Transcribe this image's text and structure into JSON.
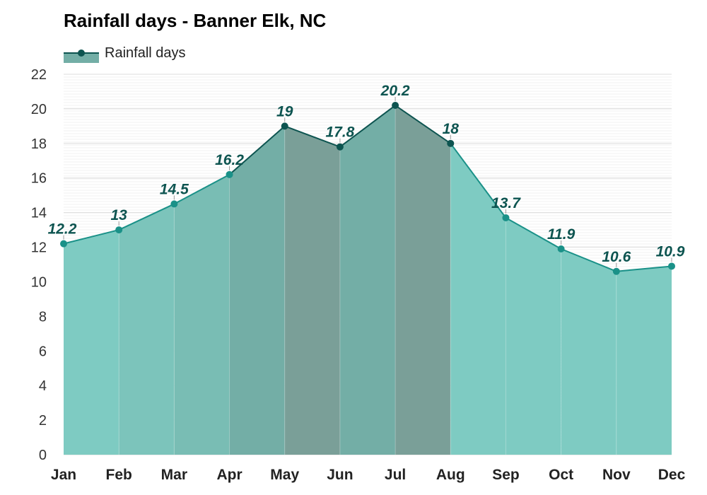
{
  "chart_data": {
    "type": "area",
    "title": "Rainfall days - Banner Elk, NC",
    "categories": [
      "Jan",
      "Feb",
      "Mar",
      "Apr",
      "May",
      "Jun",
      "Jul",
      "Aug",
      "Sep",
      "Oct",
      "Nov",
      "Dec"
    ],
    "series": [
      {
        "name": "Rainfall days",
        "values": [
          12.2,
          13,
          14.5,
          16.2,
          19,
          17.8,
          20.2,
          18,
          13.7,
          11.9,
          10.6,
          10.9
        ],
        "data_labels": [
          "12.2",
          "13",
          "14.5",
          "16.2",
          "19",
          "17.8",
          "20.2",
          "18",
          "13.7",
          "11.9",
          "10.6",
          "10.9"
        ]
      }
    ],
    "ylim": [
      0,
      22
    ],
    "yticks": [
      0,
      2,
      4,
      6,
      8,
      10,
      12,
      14,
      16,
      18,
      20,
      22
    ],
    "ytick_labels": [
      "0",
      "2",
      "4",
      "6",
      "8",
      "10",
      "12",
      "14",
      "16",
      "18",
      "20",
      "22"
    ],
    "grid": true,
    "legend_position": "top-left",
    "colors": {
      "fill": "#7ecbc2",
      "fill_mid": "#73aea6",
      "fill_dark": "#7a9f98",
      "line": "#1a9188",
      "line_dark": "#0d5450",
      "marker": "#1a9188",
      "marker_dark": "#0d5450"
    }
  }
}
